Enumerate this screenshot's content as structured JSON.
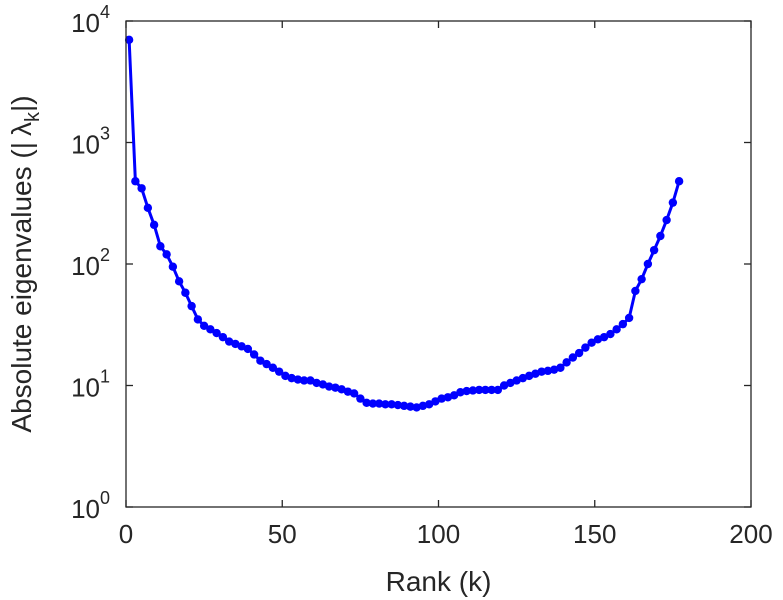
{
  "chart_data": {
    "type": "line",
    "title": "",
    "xlabel": "Rank (k)",
    "ylabel": "Absolute eigenvalues (|λ_k|)",
    "ylabel_parts": {
      "prefix": "Absolute eigenvalues (|",
      "symbol": "λ",
      "subscript": "k",
      "suffix": "|)"
    },
    "xlim": [
      0,
      200
    ],
    "ylim": [
      1,
      10000
    ],
    "yscale": "log",
    "grid": false,
    "x_ticks": [
      0,
      50,
      100,
      150,
      200
    ],
    "x_tick_labels": [
      "0",
      "50",
      "100",
      "150",
      "200"
    ],
    "y_ticks": [
      1,
      10,
      100,
      1000,
      10000
    ],
    "y_tick_labels": [
      {
        "base": "10",
        "exp": "0"
      },
      {
        "base": "10",
        "exp": "1"
      },
      {
        "base": "10",
        "exp": "2"
      },
      {
        "base": "10",
        "exp": "3"
      },
      {
        "base": "10",
        "exp": "4"
      }
    ],
    "series": [
      {
        "color": "#0000ff",
        "marker": "circle",
        "x": [
          1,
          3,
          5,
          7,
          9,
          11,
          13,
          15,
          17,
          19,
          21,
          23,
          25,
          27,
          29,
          31,
          33,
          35,
          37,
          39,
          41,
          43,
          45,
          47,
          49,
          51,
          53,
          55,
          57,
          59,
          61,
          63,
          65,
          67,
          69,
          71,
          73,
          75,
          77,
          79,
          81,
          83,
          85,
          87,
          89,
          91,
          93,
          95,
          97,
          99,
          101,
          103,
          105,
          107,
          109,
          111,
          113,
          115,
          117,
          119,
          121,
          123,
          125,
          127,
          129,
          131,
          133,
          135,
          137,
          139,
          141,
          143,
          145,
          147,
          149,
          151,
          153,
          155,
          157,
          159,
          161,
          163,
          165,
          167,
          169,
          171,
          173,
          175,
          177
        ],
        "y": [
          7000,
          480,
          420,
          290,
          210,
          140,
          120,
          95,
          72,
          58,
          45,
          35,
          31,
          29,
          27,
          25,
          23,
          22,
          21,
          20,
          18,
          16,
          15,
          14,
          13,
          12,
          11.5,
          11.2,
          11,
          11,
          10.5,
          10.2,
          9.8,
          9.6,
          9.3,
          8.9,
          8.6,
          7.8,
          7.2,
          7.1,
          7.1,
          7.0,
          7.0,
          6.9,
          6.8,
          6.7,
          6.6,
          6.8,
          7.0,
          7.4,
          7.8,
          8.0,
          8.3,
          8.8,
          9.0,
          9.1,
          9.2,
          9.2,
          9.2,
          9.2,
          10.0,
          10.5,
          11.0,
          11.5,
          12.0,
          12.5,
          13.0,
          13.2,
          13.5,
          14.0,
          15.5,
          17.0,
          18.5,
          20.5,
          22.5,
          24.0,
          25.0,
          26.5,
          29.0,
          32.0,
          36.0,
          60.0,
          75.0,
          100.0,
          130.0,
          170.0,
          230.0,
          320.0,
          480.0
        ]
      }
    ]
  }
}
